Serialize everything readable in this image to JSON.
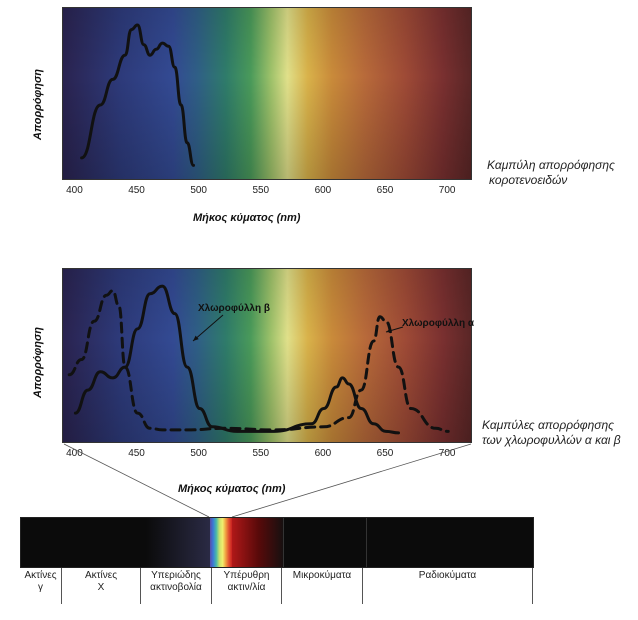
{
  "top_chart": {
    "ylabel": "Απορρόφηση",
    "xlabel": "Μήκος κύματος (nm)",
    "ticks": [
      "400",
      "450",
      "500",
      "550",
      "600",
      "650",
      "700"
    ],
    "caption_line1": "Καμπύλη απορρόφησης",
    "caption_line2": "κοροτενοειδών"
  },
  "bottom_chart": {
    "ylabel": "Απορρόφηση",
    "xlabel": "Μήκος κύματος (nm)",
    "ticks": [
      "400",
      "450",
      "500",
      "550",
      "600",
      "650",
      "700"
    ],
    "label_chl_b": "Χλωροφύλλη β",
    "label_chl_a": "Χλωροφύλλη α",
    "caption_line1": "Καμπύλες απορρόφησης",
    "caption_line2": "των χλωροφυλλών α και β"
  },
  "em_spectrum": {
    "regions": [
      {
        "line1": "Ακτίνες",
        "line2": "γ"
      },
      {
        "line1": "Ακτίνες",
        "line2": "Χ"
      },
      {
        "line1": "Υπεριώδης",
        "line2": "ακτινοβολία"
      },
      {
        "line1": "Υπέρυθρη",
        "line2": "ακτιν/λία"
      },
      {
        "line1": "Μικροκύματα",
        "line2": ""
      },
      {
        "line1": "Ραδιοκύματα",
        "line2": ""
      }
    ]
  },
  "chart_data": [
    {
      "type": "line",
      "title": "",
      "xlabel": "Μήκος κύματος (nm)",
      "ylabel": "Απορρόφηση",
      "xlim": [
        390,
        720
      ],
      "ylim": [
        0,
        1
      ],
      "series": [
        {
          "name": "Καμπύλη απορρόφησης κοροτενοειδών",
          "x": [
            405,
            420,
            430,
            440,
            445,
            450,
            455,
            460,
            465,
            470,
            475,
            480,
            485,
            490,
            495
          ],
          "y": [
            0.1,
            0.45,
            0.62,
            0.78,
            0.95,
            0.98,
            0.85,
            0.78,
            0.82,
            0.86,
            0.84,
            0.7,
            0.45,
            0.2,
            0.05
          ]
        }
      ]
    },
    {
      "type": "line",
      "title": "",
      "xlabel": "Μήκος κύματος (nm)",
      "ylabel": "Απορρόφηση",
      "xlim": [
        390,
        720
      ],
      "ylim": [
        0,
        1
      ],
      "series": [
        {
          "name": "Χλωροφύλλη β",
          "x": [
            400,
            410,
            420,
            430,
            440,
            450,
            460,
            470,
            480,
            490,
            500,
            510,
            530,
            560,
            590,
            600,
            610,
            615,
            620,
            630,
            640,
            650,
            660
          ],
          "y": [
            0.15,
            0.3,
            0.42,
            0.38,
            0.45,
            0.7,
            0.93,
            0.98,
            0.8,
            0.45,
            0.18,
            0.06,
            0.03,
            0.03,
            0.08,
            0.18,
            0.32,
            0.38,
            0.34,
            0.18,
            0.08,
            0.03,
            0.02
          ]
        },
        {
          "name": "Χλωροφύλλη α",
          "x": [
            395,
            405,
            415,
            425,
            430,
            435,
            440,
            450,
            460,
            470,
            490,
            520,
            560,
            600,
            620,
            630,
            640,
            645,
            650,
            660,
            670,
            690,
            700
          ],
          "y": [
            0.4,
            0.5,
            0.75,
            0.92,
            0.95,
            0.85,
            0.45,
            0.15,
            0.05,
            0.04,
            0.04,
            0.05,
            0.04,
            0.06,
            0.12,
            0.3,
            0.62,
            0.78,
            0.75,
            0.45,
            0.18,
            0.05,
            0.03
          ]
        }
      ]
    }
  ]
}
